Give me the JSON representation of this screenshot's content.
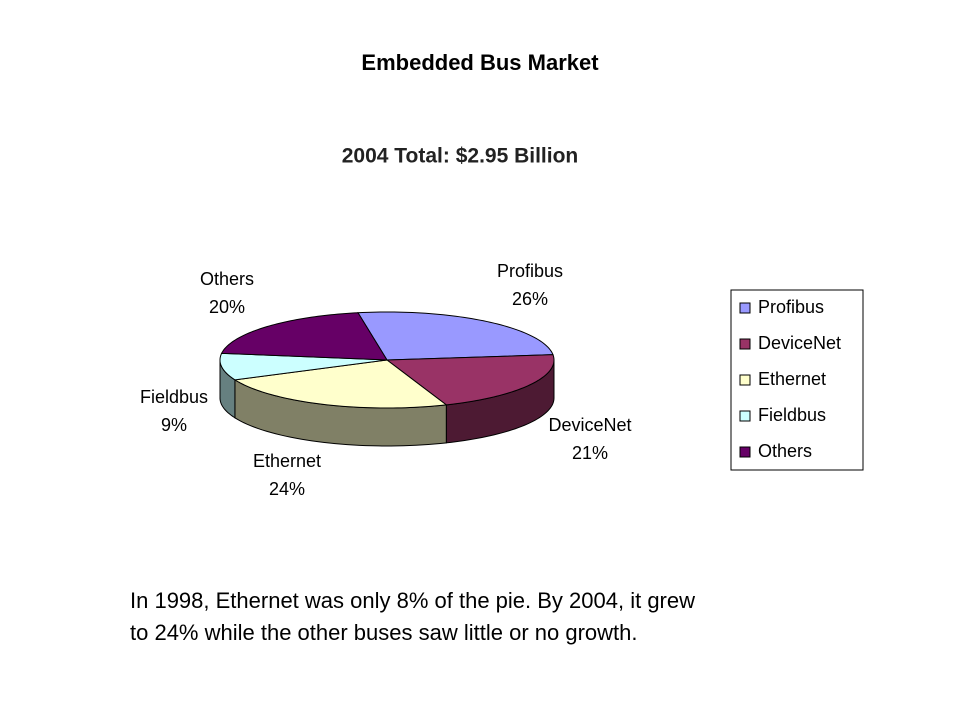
{
  "title": "Embedded Bus Market",
  "caption": [
    "In 1998, Ethernet was only 8% of the pie. By 2004, it grew",
    "to 24% while the other buses saw little or no growth."
  ],
  "chart_data": {
    "type": "pie",
    "title": "2004 Total: $2.95 Billion",
    "categories": [
      "Profibus",
      "DeviceNet",
      "Ethernet",
      "Fieldbus",
      "Others"
    ],
    "values": [
      26,
      21,
      24,
      9,
      20
    ],
    "value_labels": [
      "26%",
      "21%",
      "24%",
      "9%",
      "20%"
    ],
    "colors": [
      "#9999ff",
      "#993366",
      "#ffffcc",
      "#ccffff",
      "#660066"
    ],
    "legend": "right"
  }
}
